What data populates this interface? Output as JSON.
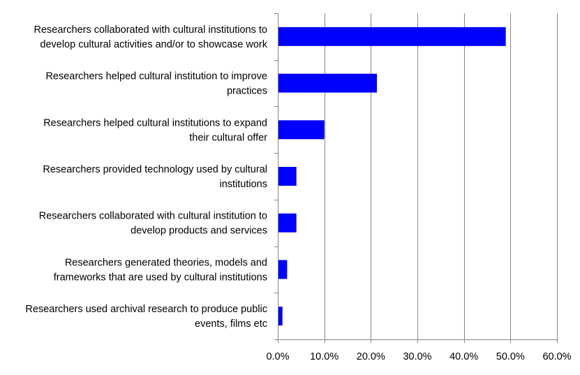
{
  "chart_data": {
    "type": "bar",
    "orientation": "horizontal",
    "categories": [
      "Researchers collaborated with cultural institutions to develop cultural activities and/or to showcase work",
      "Researchers helped cultural institution to improve practices",
      "Researchers helped cultural institutions to expand their cultural offer",
      "Researchers provided technology used by cultural institutions",
      "Researchers collaborated with cultural institution to develop products and services",
      "Researchers generated theories, models and frameworks that are used by cultural institutions",
      "Researchers used archival research to produce public events, films etc"
    ],
    "category_lines": [
      [
        "Researchers collaborated with cultural institutions to",
        "develop cultural activities and/or to showcase work"
      ],
      [
        "Researchers helped cultural institution to improve",
        "practices"
      ],
      [
        "Researchers helped cultural institutions to expand",
        "their cultural offer"
      ],
      [
        "Researchers provided technology used by cultural",
        "institutions"
      ],
      [
        "Researchers collaborated with cultural institution to",
        "develop products and services"
      ],
      [
        "Researchers generated theories, models and",
        "frameworks that are used by cultural institutions"
      ],
      [
        "Researchers used archival research to produce public",
        "events, films etc"
      ]
    ],
    "values": [
      49.0,
      21.3,
      10.0,
      4.0,
      4.0,
      2.0,
      1.0
    ],
    "value_unit": "percent",
    "xlim": [
      0,
      60
    ],
    "xticks": [
      0,
      10,
      20,
      30,
      40,
      50,
      60
    ],
    "xtick_labels": [
      "0.0%",
      "10.0%",
      "20.0%",
      "30.0%",
      "40.0%",
      "50.0%",
      "60.0%"
    ],
    "title": "",
    "xlabel": "",
    "ylabel": "",
    "grid": "vertical major gridlines",
    "legend": "none",
    "bar_color": "#0000FF",
    "grid_color": "#868686",
    "axis_color": "#868686"
  }
}
